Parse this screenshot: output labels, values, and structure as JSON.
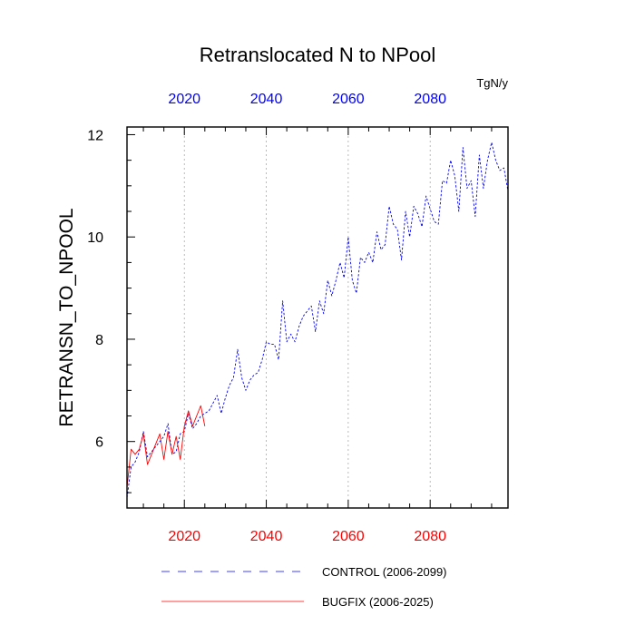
{
  "chart_data": {
    "type": "line",
    "title": "Retranslocated N to NPool",
    "units": "TgN/y",
    "ylabel": "RETRANSN_TO_NPOOL",
    "xlabel": "",
    "xlim": [
      2006,
      2099
    ],
    "ylim": [
      4.7,
      12.15
    ],
    "x_ticks": [
      2020,
      2040,
      2060,
      2080
    ],
    "x_tick_labels": [
      "2020",
      "2040",
      "2060",
      "2080"
    ],
    "y_ticks": [
      6,
      8,
      10,
      12
    ],
    "y_tick_labels": [
      "6",
      "8",
      "10",
      "12"
    ],
    "grid": "vertical dotted at x ticks",
    "legend_position": "bottom",
    "colors": {
      "control": "#0000ff",
      "bugfix": "#ff0000",
      "axis": "#000000",
      "grid": "#aaaaaa"
    },
    "series": [
      {
        "name": "CONTROL (2006-2099)",
        "color": "#0000ff",
        "dash": "dashed",
        "x": [
          2006,
          2007,
          2008,
          2009,
          2010,
          2011,
          2012,
          2013,
          2014,
          2015,
          2016,
          2017,
          2018,
          2019,
          2020,
          2021,
          2022,
          2023,
          2024,
          2025,
          2026,
          2027,
          2028,
          2029,
          2030,
          2031,
          2032,
          2033,
          2034,
          2035,
          2036,
          2037,
          2038,
          2039,
          2040,
          2041,
          2042,
          2043,
          2044,
          2045,
          2046,
          2047,
          2048,
          2049,
          2050,
          2051,
          2052,
          2053,
          2054,
          2055,
          2056,
          2057,
          2058,
          2059,
          2060,
          2061,
          2062,
          2063,
          2064,
          2065,
          2066,
          2067,
          2068,
          2069,
          2070,
          2071,
          2072,
          2073,
          2074,
          2075,
          2076,
          2077,
          2078,
          2079,
          2080,
          2081,
          2082,
          2083,
          2084,
          2085,
          2086,
          2087,
          2088,
          2089,
          2090,
          2091,
          2092,
          2093,
          2094,
          2095,
          2096,
          2097,
          2098,
          2099
        ],
        "values": [
          4.9,
          5.5,
          5.6,
          5.8,
          6.2,
          5.7,
          5.8,
          5.9,
          6.0,
          6.1,
          6.35,
          5.75,
          5.8,
          6.15,
          6.2,
          6.55,
          6.25,
          6.35,
          6.5,
          6.55,
          6.6,
          6.75,
          6.9,
          6.55,
          6.85,
          7.1,
          7.25,
          7.8,
          7.25,
          7.0,
          7.2,
          7.3,
          7.35,
          7.6,
          7.95,
          7.9,
          7.9,
          7.6,
          8.75,
          7.95,
          8.1,
          7.95,
          8.25,
          8.45,
          8.55,
          8.65,
          8.15,
          8.75,
          8.5,
          9.15,
          8.85,
          9.15,
          9.5,
          9.2,
          10.0,
          9.15,
          8.9,
          9.6,
          9.5,
          9.7,
          9.5,
          10.1,
          9.75,
          9.85,
          10.6,
          10.25,
          10.15,
          9.55,
          10.5,
          10.0,
          10.6,
          10.45,
          10.2,
          10.8,
          10.55,
          10.3,
          10.25,
          11.1,
          11.05,
          11.5,
          11.2,
          10.5,
          11.75,
          10.95,
          11.1,
          10.4,
          11.6,
          10.95,
          11.5,
          11.85,
          11.5,
          11.3,
          11.35,
          10.9
        ]
      },
      {
        "name": "BUGFIX (2006-2025)",
        "color": "#ff0000",
        "dash": "solid",
        "x": [
          2006,
          2007,
          2008,
          2009,
          2010,
          2011,
          2012,
          2013,
          2014,
          2015,
          2016,
          2017,
          2018,
          2019,
          2020,
          2021,
          2022,
          2023,
          2024,
          2025
        ],
        "values": [
          5.1,
          5.85,
          5.75,
          5.85,
          6.15,
          5.55,
          5.75,
          5.95,
          6.15,
          5.65,
          6.2,
          5.75,
          6.1,
          5.65,
          6.3,
          6.6,
          6.3,
          6.5,
          6.7,
          6.3
        ]
      }
    ]
  }
}
